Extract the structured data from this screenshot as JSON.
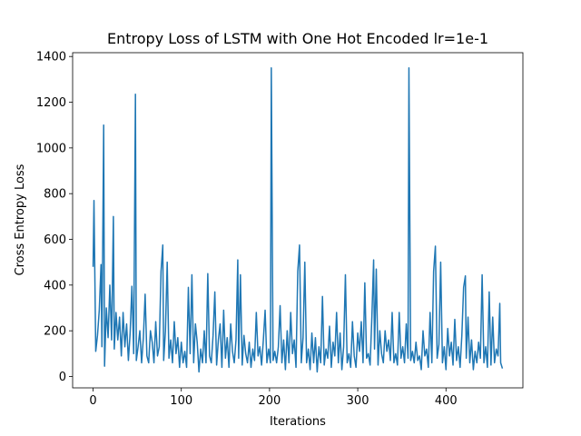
{
  "chart_data": {
    "type": "line",
    "title": "Entropy Loss of LSTM with One Hot Encoded lr=1e-1",
    "xlabel": "Iterations",
    "ylabel": "Cross Entropy Loss",
    "color": "#1f77b4",
    "x": [
      0,
      1,
      3,
      5,
      7,
      9,
      10,
      12,
      13,
      15,
      17,
      19,
      21,
      23,
      24,
      26,
      28,
      30,
      32,
      34,
      36,
      38,
      40,
      42,
      44,
      46,
      48,
      49,
      51,
      53,
      55,
      57,
      59,
      61,
      63,
      65,
      67,
      69,
      71,
      73,
      75,
      77,
      79,
      80,
      82,
      84,
      86,
      88,
      90,
      92,
      94,
      96,
      98,
      100,
      102,
      104,
      106,
      108,
      110,
      112,
      114,
      116,
      118,
      120,
      122,
      124,
      126,
      128,
      130,
      132,
      134,
      136,
      138,
      140,
      142,
      144,
      146,
      148,
      150,
      152,
      154,
      156,
      158,
      160,
      162,
      164,
      165,
      167,
      169,
      171,
      173,
      175,
      177,
      179,
      181,
      183,
      185,
      187,
      189,
      191,
      193,
      195,
      197,
      199,
      201,
      202,
      204,
      206,
      208,
      210,
      212,
      214,
      216,
      218,
      220,
      222,
      224,
      226,
      228,
      230,
      232,
      234,
      236,
      238,
      240,
      242,
      244,
      246,
      248,
      250,
      252,
      254,
      256,
      258,
      260,
      262,
      264,
      266,
      268,
      270,
      272,
      274,
      276,
      278,
      280,
      282,
      284,
      286,
      288,
      290,
      292,
      294,
      296,
      298,
      300,
      302,
      304,
      306,
      308,
      310,
      312,
      314,
      316,
      318,
      319,
      321,
      323,
      325,
      327,
      329,
      331,
      333,
      335,
      337,
      339,
      341,
      343,
      345,
      347,
      349,
      351,
      353,
      355,
      357,
      358,
      360,
      362,
      364,
      366,
      368,
      370,
      372,
      374,
      376,
      378,
      380,
      382,
      384,
      386,
      388,
      390,
      392,
      394,
      396,
      398,
      400,
      402,
      404,
      406,
      408,
      410,
      412,
      414,
      416,
      418,
      420,
      422,
      423,
      425,
      427,
      429,
      431,
      433,
      435,
      437,
      439,
      441,
      443,
      445,
      447,
      449,
      451,
      453,
      455,
      457,
      459,
      461,
      462,
      464
    ],
    "values": [
      480,
      770,
      110,
      180,
      290,
      490,
      130,
      1100,
      45,
      300,
      170,
      400,
      160,
      700,
      120,
      280,
      160,
      260,
      90,
      280,
      130,
      230,
      70,
      190,
      395,
      100,
      1235,
      70,
      130,
      200,
      60,
      170,
      360,
      90,
      60,
      200,
      150,
      60,
      240,
      90,
      130,
      460,
      575,
      70,
      200,
      500,
      80,
      160,
      60,
      240,
      100,
      170,
      40,
      150,
      60,
      110,
      40,
      390,
      100,
      445,
      60,
      230,
      150,
      20,
      120,
      60,
      200,
      60,
      450,
      90,
      60,
      180,
      370,
      50,
      160,
      230,
      40,
      290,
      80,
      170,
      40,
      230,
      110,
      60,
      160,
      510,
      80,
      445,
      50,
      180,
      100,
      60,
      150,
      40,
      120,
      70,
      280,
      90,
      130,
      50,
      160,
      290,
      60,
      120,
      60,
      1350,
      70,
      110,
      60,
      130,
      310,
      60,
      160,
      30,
      200,
      60,
      280,
      100,
      160,
      40,
      460,
      575,
      60,
      170,
      500,
      60,
      120,
      30,
      190,
      60,
      170,
      20,
      130,
      60,
      350,
      50,
      120,
      80,
      220,
      40,
      150,
      90,
      280,
      60,
      190,
      30,
      130,
      445,
      60,
      100,
      40,
      240,
      90,
      40,
      190,
      110,
      240,
      60,
      410,
      80,
      100,
      50,
      260,
      510,
      120,
      470,
      50,
      200,
      100,
      60,
      200,
      110,
      160,
      70,
      280,
      60,
      100,
      50,
      280,
      80,
      130,
      60,
      230,
      80,
      1350,
      70,
      110,
      60,
      150,
      70,
      90,
      30,
      200,
      90,
      120,
      40,
      280,
      60,
      460,
      570,
      80,
      140,
      500,
      60,
      130,
      30,
      210,
      90,
      150,
      50,
      250,
      70,
      130,
      40,
      180,
      390,
      440,
      80,
      260,
      60,
      160,
      30,
      110,
      60,
      150,
      80,
      445,
      60,
      130,
      40,
      370,
      50,
      260,
      60,
      120,
      90,
      320,
      60,
      35
    ],
    "xlim": [
      -23.2,
      487.2
    ],
    "ylim": [
      -49.7,
      1416.7
    ],
    "xticks": [
      0,
      100,
      200,
      300,
      400
    ],
    "yticks": [
      0,
      200,
      400,
      600,
      800,
      1000,
      1200,
      1400
    ]
  }
}
